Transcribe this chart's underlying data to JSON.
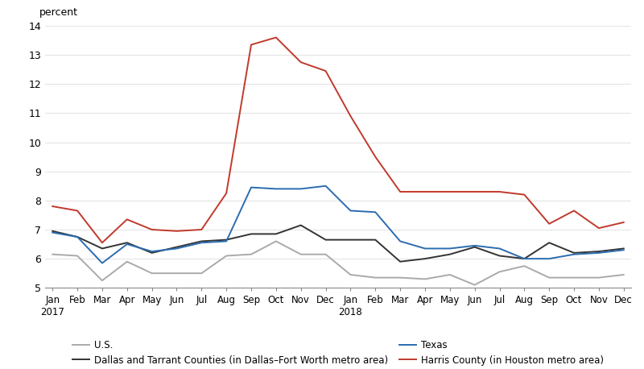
{
  "x_labels": [
    "Jan\n2017",
    "Feb",
    "Mar",
    "Apr",
    "May",
    "Jun",
    "Jul",
    "Aug",
    "Sep",
    "Oct",
    "Nov",
    "Dec",
    "Jan\n2018",
    "Feb",
    "Mar",
    "Apr",
    "May",
    "Jun",
    "Jul",
    "Aug",
    "Sep",
    "Oct",
    "Nov",
    "Dec"
  ],
  "us": [
    6.15,
    6.1,
    5.25,
    5.9,
    5.5,
    5.5,
    5.5,
    6.1,
    6.15,
    6.6,
    6.15,
    6.15,
    5.45,
    5.35,
    5.35,
    5.3,
    5.45,
    5.1,
    5.55,
    5.75,
    5.35,
    5.35,
    5.35,
    5.45
  ],
  "dallas": [
    6.95,
    6.75,
    6.35,
    6.55,
    6.2,
    6.4,
    6.6,
    6.65,
    6.85,
    6.85,
    7.15,
    6.65,
    6.65,
    6.65,
    5.9,
    6.0,
    6.15,
    6.4,
    6.1,
    6.0,
    6.55,
    6.2,
    6.25,
    6.35
  ],
  "texas": [
    6.9,
    6.75,
    5.85,
    6.5,
    6.25,
    6.35,
    6.55,
    6.6,
    8.45,
    8.4,
    8.4,
    8.5,
    7.65,
    7.6,
    6.6,
    6.35,
    6.35,
    6.45,
    6.35,
    6.0,
    6.0,
    6.15,
    6.2,
    6.3
  ],
  "harris": [
    7.8,
    7.65,
    6.55,
    7.35,
    7.0,
    6.95,
    7.0,
    8.25,
    13.35,
    13.6,
    12.75,
    12.45,
    10.9,
    9.5,
    8.3,
    8.3,
    8.3,
    8.3,
    8.3,
    8.2,
    7.2,
    7.65,
    7.05,
    7.25
  ],
  "ylim": [
    5,
    14
  ],
  "yticks": [
    5,
    6,
    7,
    8,
    9,
    10,
    11,
    12,
    13,
    14
  ],
  "ylabel": "percent",
  "us_color": "#aaaaaa",
  "dallas_color": "#333333",
  "texas_color": "#2b6cb0",
  "harris_color": "#c0392b",
  "us_label": "U.S.",
  "dallas_label": "Dallas and Tarrant Counties (in Dallas–Fort Worth metro area)",
  "texas_label": "Texas",
  "harris_label": "Harris County (in Houston metro area)",
  "background_color": "#ffffff"
}
